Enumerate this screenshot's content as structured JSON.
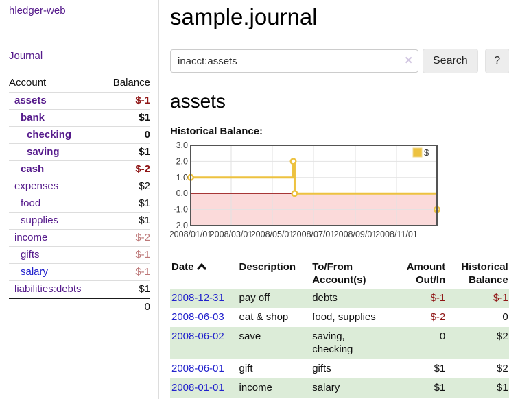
{
  "app": {
    "title": "hledger-web"
  },
  "sidebar": {
    "journal_link": "Journal",
    "accounts_table": {
      "account_header": "Account",
      "balance_header": "Balance",
      "rows": [
        {
          "name": "assets",
          "indent": 1,
          "bold": true,
          "balance": "$-1",
          "balance_class": "neg-strong",
          "name_class": "lnk-purple"
        },
        {
          "name": "bank",
          "indent": 2,
          "bold": true,
          "balance": "$1",
          "balance_class": "pos",
          "name_class": "lnk-purple"
        },
        {
          "name": "checking",
          "indent": 3,
          "bold": true,
          "balance": "0",
          "balance_class": "pos",
          "name_class": "lnk-purple"
        },
        {
          "name": "saving",
          "indent": 3,
          "bold": true,
          "balance": "$1",
          "balance_class": "pos",
          "name_class": "lnk-purple"
        },
        {
          "name": "cash",
          "indent": 2,
          "bold": true,
          "balance": "$-2",
          "balance_class": "neg-strong",
          "name_class": "lnk-purple"
        },
        {
          "name": "expenses",
          "indent": 1,
          "bold": false,
          "balance": "$2",
          "balance_class": "pos",
          "name_class": "lnk-purple"
        },
        {
          "name": "food",
          "indent": 2,
          "bold": false,
          "balance": "$1",
          "balance_class": "pos",
          "name_class": "lnk-purple"
        },
        {
          "name": "supplies",
          "indent": 2,
          "bold": false,
          "balance": "$1",
          "balance_class": "pos",
          "name_class": "lnk-purple"
        },
        {
          "name": "income",
          "indent": 1,
          "bold": false,
          "balance": "$-2",
          "balance_class": "neg-soft",
          "name_class": "lnk-purple"
        },
        {
          "name": "gifts",
          "indent": 2,
          "bold": false,
          "balance": "$-1",
          "balance_class": "neg-soft",
          "name_class": "lnk-purple"
        },
        {
          "name": "salary",
          "indent": 2,
          "bold": false,
          "balance": "$-1",
          "balance_class": "neg-soft",
          "name_class": "lnk-blue"
        },
        {
          "name": "liabilities:debts",
          "indent": 1,
          "bold": false,
          "balance": "$1",
          "balance_class": "pos",
          "name_class": "lnk-purple"
        }
      ],
      "total": "0"
    }
  },
  "main": {
    "title": "sample.journal",
    "search": {
      "value": "inacct:assets",
      "clear_icon": "✕",
      "button_label": "Search",
      "help_label": "?"
    },
    "account_heading": "assets",
    "chart_label": "Historical Balance:",
    "register_table": {
      "headers": {
        "date": "Date",
        "description": "Description",
        "accounts": "To/From Account(s)",
        "amount": "Amount Out/In",
        "balance": "Historical Balance"
      },
      "rows": [
        {
          "date": "2008-12-31",
          "description": "pay off",
          "accounts": "debts",
          "amount": "$-1",
          "amount_class": "neg-strong",
          "balance": "$-1",
          "balance_class": "neg-strong"
        },
        {
          "date": "2008-06-03",
          "description": "eat & shop",
          "accounts": "food, supplies",
          "amount": "$-2",
          "amount_class": "neg-strong",
          "balance": "0",
          "balance_class": "pos"
        },
        {
          "date": "2008-06-02",
          "description": "save",
          "accounts": "saving, checking",
          "amount": "0",
          "amount_class": "pos",
          "balance": "$2",
          "balance_class": "pos"
        },
        {
          "date": "2008-06-01",
          "description": "gift",
          "accounts": "gifts",
          "amount": "$1",
          "amount_class": "pos",
          "balance": "$2",
          "balance_class": "pos"
        },
        {
          "date": "2008-01-01",
          "description": "income",
          "accounts": "salary",
          "amount": "$1",
          "amount_class": "pos",
          "balance": "$1",
          "balance_class": "pos"
        }
      ]
    }
  },
  "chart_data": {
    "type": "line",
    "step": true,
    "title": "Historical Balance:",
    "series": [
      {
        "name": "$",
        "x": [
          "2008-01-01",
          "2008-06-01",
          "2008-06-03",
          "2008-12-31"
        ],
        "values": [
          1,
          2,
          0,
          -1
        ]
      }
    ],
    "x_range": [
      "2008-01-01",
      "2008-12-31"
    ],
    "ylim": [
      -2,
      3
    ],
    "yticks": [
      "3.0",
      "2.0",
      "1.0",
      "0.0",
      "-1.0",
      "-2.0"
    ],
    "ytick_values": [
      3,
      2,
      1,
      0,
      -1,
      -2
    ],
    "xtick_labels": [
      "2008/01/01",
      "2008/03/01",
      "2008/05/01",
      "2008/07/01",
      "2008/09/01",
      "2008/11/01"
    ],
    "xtick_dates": [
      "2008-01-01",
      "2008-03-01",
      "2008-05-01",
      "2008-07-01",
      "2008-09-01",
      "2008-11-01"
    ],
    "legend": {
      "position": "top-right",
      "entries": [
        "$"
      ]
    },
    "grid": true,
    "colors": {
      "series": "#edc240",
      "marker_fill": "#ffffff",
      "negative_region": "#fbdada",
      "zero_line": "#8b0000",
      "gridline": "#e2e2e2",
      "plot_border": "#545454",
      "tick_text": "#3a3a3a"
    }
  }
}
